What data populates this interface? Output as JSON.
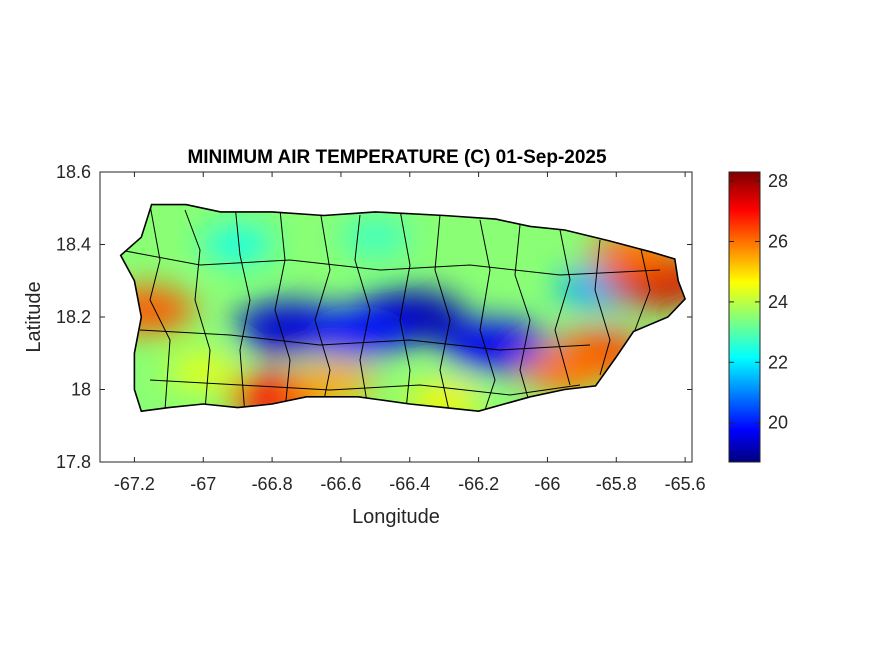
{
  "chart_data": {
    "type": "heatmap",
    "title": "MINIMUM AIR TEMPERATURE (C) 01-Sep-2025",
    "xlabel": "Longitude",
    "ylabel": "Latitude",
    "xlim": [
      -67.3,
      -65.58
    ],
    "ylim": [
      17.8,
      18.6
    ],
    "xticks": [
      -67.2,
      -67,
      -66.8,
      -66.6,
      -66.4,
      -66.2,
      -66,
      -65.8,
      -65.6
    ],
    "xtick_labels": [
      "-67.2",
      "-67",
      "-66.8",
      "-66.6",
      "-66.4",
      "-66.2",
      "-66",
      "-65.8",
      "-65.6"
    ],
    "yticks": [
      17.8,
      18,
      18.2,
      18.4,
      18.6
    ],
    "ytick_labels": [
      "17.8",
      "18",
      "18.2",
      "18.4",
      "18.6"
    ],
    "colorbar": {
      "range": [
        18.7,
        28.3
      ],
      "ticks": [
        20,
        22,
        24,
        26,
        28
      ],
      "tick_labels": [
        "20",
        "22",
        "24",
        "26",
        "28"
      ],
      "colormap": "jet"
    },
    "grid": false,
    "island_outline": [
      [
        -67.24,
        18.37
      ],
      [
        -67.18,
        18.42
      ],
      [
        -67.16,
        18.48
      ],
      [
        -67.15,
        18.51
      ],
      [
        -67.05,
        18.51
      ],
      [
        -66.95,
        18.49
      ],
      [
        -66.8,
        18.49
      ],
      [
        -66.65,
        18.48
      ],
      [
        -66.5,
        18.49
      ],
      [
        -66.3,
        18.48
      ],
      [
        -66.15,
        18.47
      ],
      [
        -66.05,
        18.45
      ],
      [
        -65.95,
        18.44
      ],
      [
        -65.82,
        18.41
      ],
      [
        -65.7,
        18.38
      ],
      [
        -65.63,
        18.36
      ],
      [
        -65.62,
        18.3
      ],
      [
        -65.6,
        18.25
      ],
      [
        -65.65,
        18.2
      ],
      [
        -65.75,
        18.16
      ],
      [
        -65.8,
        18.09
      ],
      [
        -65.86,
        18.01
      ],
      [
        -65.95,
        18.0
      ],
      [
        -66.05,
        17.98
      ],
      [
        -66.2,
        17.94
      ],
      [
        -66.3,
        17.95
      ],
      [
        -66.4,
        17.96
      ],
      [
        -66.55,
        17.98
      ],
      [
        -66.7,
        17.98
      ],
      [
        -66.8,
        17.96
      ],
      [
        -66.9,
        17.95
      ],
      [
        -67.0,
        17.96
      ],
      [
        -67.1,
        17.95
      ],
      [
        -67.18,
        17.94
      ],
      [
        -67.2,
        18.0
      ],
      [
        -67.2,
        18.1
      ],
      [
        -67.18,
        18.2
      ],
      [
        -67.2,
        18.3
      ],
      [
        -67.24,
        18.37
      ]
    ],
    "temperature_features": [
      {
        "lon": -66.4,
        "lat": 18.2,
        "value": 19.2
      },
      {
        "lon": -66.75,
        "lat": 18.17,
        "value": 19.5
      },
      {
        "lon": -66.15,
        "lat": 18.12,
        "value": 19.8
      },
      {
        "lon": -66.55,
        "lat": 18.16,
        "value": 20.0
      },
      {
        "lon": -65.85,
        "lat": 18.28,
        "value": 21.5
      },
      {
        "lon": -66.9,
        "lat": 18.4,
        "value": 22.5
      },
      {
        "lon": -66.5,
        "lat": 18.42,
        "value": 22.8
      },
      {
        "lon": -65.68,
        "lat": 18.3,
        "value": 27.5
      },
      {
        "lon": -65.85,
        "lat": 18.1,
        "value": 26.5
      },
      {
        "lon": -65.95,
        "lat": 18.05,
        "value": 26.0
      },
      {
        "lon": -67.16,
        "lat": 18.22,
        "value": 26.3
      },
      {
        "lon": -66.78,
        "lat": 17.98,
        "value": 27.0
      },
      {
        "lon": -66.62,
        "lat": 18.02,
        "value": 25.5
      },
      {
        "lon": -65.75,
        "lat": 18.38,
        "value": 26.0
      },
      {
        "lon": -67.0,
        "lat": 18.05,
        "value": 24.5
      },
      {
        "lon": -66.3,
        "lat": 17.97,
        "value": 24.8
      }
    ]
  }
}
